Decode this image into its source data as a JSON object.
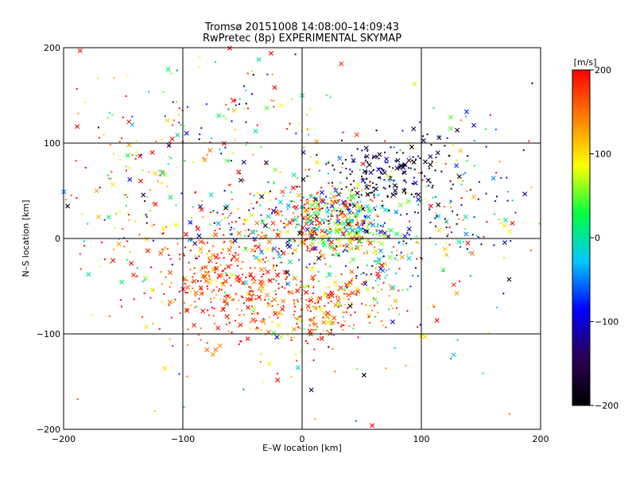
{
  "chart_data": {
    "type": "scatter",
    "title": "Tromsø 20151008 14:08:00–14:09:43",
    "subtitle": "RwPretec (8p) EXPERIMENTAL SKYMAP",
    "xlabel": "E–W location [km]",
    "ylabel": "N–S location [km]",
    "xlim": [
      -200,
      200
    ],
    "ylim": [
      -200,
      200
    ],
    "x_ticks": [
      -200,
      -100,
      0,
      100,
      200
    ],
    "y_ticks": [
      -200,
      -100,
      0,
      100,
      200
    ],
    "grid": true,
    "markers": [
      "dot",
      "cross"
    ],
    "colorbar": {
      "label": "[m/s]",
      "min": -200,
      "max": 200,
      "ticks": [
        200,
        100,
        0,
        -100,
        -200
      ],
      "colormap": [
        "#000000",
        "#2a0055",
        "#0000ff",
        "#00c8ff",
        "#00ff40",
        "#ffff00",
        "#ff8000",
        "#ff0000"
      ]
    },
    "point_clusters": [
      {
        "center": [
          -60,
          -45
        ],
        "spread": [
          35,
          30
        ],
        "count": 420,
        "velocity_mean": 175,
        "velocity_sd": 40
      },
      {
        "center": [
          20,
          -70
        ],
        "spread": [
          30,
          25
        ],
        "count": 220,
        "velocity_mean": 150,
        "velocity_sd": 70
      },
      {
        "center": [
          30,
          20
        ],
        "spread": [
          22,
          15
        ],
        "count": 360,
        "velocity_mean": 80,
        "velocity_sd": 120
      },
      {
        "center": [
          70,
          70
        ],
        "spread": [
          28,
          18
        ],
        "count": 170,
        "velocity_mean": -170,
        "velocity_sd": 40
      },
      {
        "center": [
          -30,
          20
        ],
        "spread": [
          40,
          30
        ],
        "count": 200,
        "velocity_mean": 60,
        "velocity_sd": 110
      },
      {
        "center": [
          130,
          40
        ],
        "spread": [
          35,
          40
        ],
        "count": 160,
        "velocity_mean": 0,
        "velocity_sd": 140
      },
      {
        "center": [
          -150,
          60
        ],
        "spread": [
          30,
          50
        ],
        "count": 110,
        "velocity_mean": 80,
        "velocity_sd": 110
      },
      {
        "center": [
          -60,
          120
        ],
        "spread": [
          40,
          35
        ],
        "count": 100,
        "velocity_mean": 40,
        "velocity_sd": 120
      },
      {
        "center": [
          60,
          -10
        ],
        "spread": [
          30,
          25
        ],
        "count": 140,
        "velocity_mean": 20,
        "velocity_sd": 120
      },
      {
        "center": [
          0,
          0
        ],
        "spread": [
          110,
          110
        ],
        "count": 200,
        "velocity_mean": 60,
        "velocity_sd": 140
      }
    ]
  }
}
